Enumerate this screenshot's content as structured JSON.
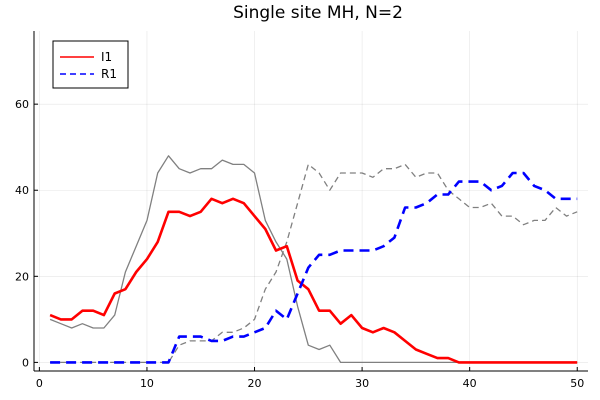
{
  "chart_data": {
    "type": "line",
    "title": "Single site MH, N=2",
    "xlabel": "",
    "ylabel": "",
    "xlim": [
      -0.5,
      51.0
    ],
    "ylim": [
      -2,
      77
    ],
    "xticks": [
      0,
      10,
      20,
      30,
      40,
      50
    ],
    "yticks": [
      0,
      20,
      40,
      60
    ],
    "grid": true,
    "legend_position": "top-left",
    "x": [
      1,
      2,
      3,
      4,
      5,
      6,
      7,
      8,
      9,
      10,
      11,
      12,
      13,
      14,
      15,
      16,
      17,
      18,
      19,
      20,
      21,
      22,
      23,
      24,
      25,
      26,
      27,
      28,
      29,
      30,
      31,
      32,
      33,
      34,
      35,
      36,
      37,
      38,
      39,
      40,
      41,
      42,
      43,
      44,
      45,
      46,
      47,
      48,
      49,
      50
    ],
    "series": [
      {
        "name": "I1",
        "color": "#ff0000",
        "style": "solid",
        "width": 2.6,
        "legend": true,
        "values": [
          11,
          10,
          10,
          12,
          12,
          11,
          16,
          17,
          21,
          24,
          28,
          35,
          35,
          34,
          35,
          38,
          37,
          38,
          37,
          34,
          31,
          26,
          27,
          19,
          17,
          12,
          12,
          9,
          11,
          8,
          7,
          8,
          7,
          5,
          3,
          2,
          1,
          1,
          0,
          0,
          0,
          0,
          0,
          0,
          0,
          0,
          0,
          0,
          0,
          0
        ]
      },
      {
        "name": "R1",
        "color": "#0000ff",
        "style": "dashed",
        "width": 2.6,
        "legend": true,
        "values": [
          0,
          0,
          0,
          0,
          0,
          0,
          0,
          0,
          0,
          0,
          0,
          0,
          6,
          6,
          6,
          5,
          5,
          6,
          6,
          7,
          8,
          12,
          10,
          16,
          22,
          25,
          25,
          26,
          26,
          26,
          26,
          27,
          29,
          36,
          36,
          37,
          39,
          39,
          42,
          42,
          42,
          40,
          41,
          44,
          44,
          41,
          40,
          38,
          38,
          38
        ]
      },
      {
        "color": "#808080",
        "style": "solid",
        "width": 1.3,
        "legend": false,
        "values": [
          10,
          9,
          8,
          9,
          8,
          8,
          11,
          21,
          27,
          33,
          44,
          48,
          45,
          44,
          45,
          45,
          47,
          46,
          46,
          44,
          33,
          28,
          24,
          13,
          4,
          3,
          4,
          0,
          0,
          0,
          0,
          0,
          0,
          0,
          0,
          0,
          0,
          0,
          0,
          0,
          0,
          0,
          0,
          0,
          0,
          0,
          0,
          0,
          0,
          0
        ]
      },
      {
        "color": "#808080",
        "style": "dashed",
        "width": 1.3,
        "legend": false,
        "values": [
          0,
          0,
          0,
          0,
          0,
          0,
          0,
          0,
          0,
          0,
          0,
          0,
          4,
          5,
          5,
          5,
          7,
          7,
          8,
          10,
          17,
          21,
          28,
          37,
          46,
          44,
          40,
          44,
          44,
          44,
          43,
          45,
          45,
          46,
          43,
          44,
          44,
          40,
          38,
          36,
          36,
          37,
          34,
          34,
          32,
          33,
          33,
          36,
          34,
          35
        ]
      }
    ]
  }
}
